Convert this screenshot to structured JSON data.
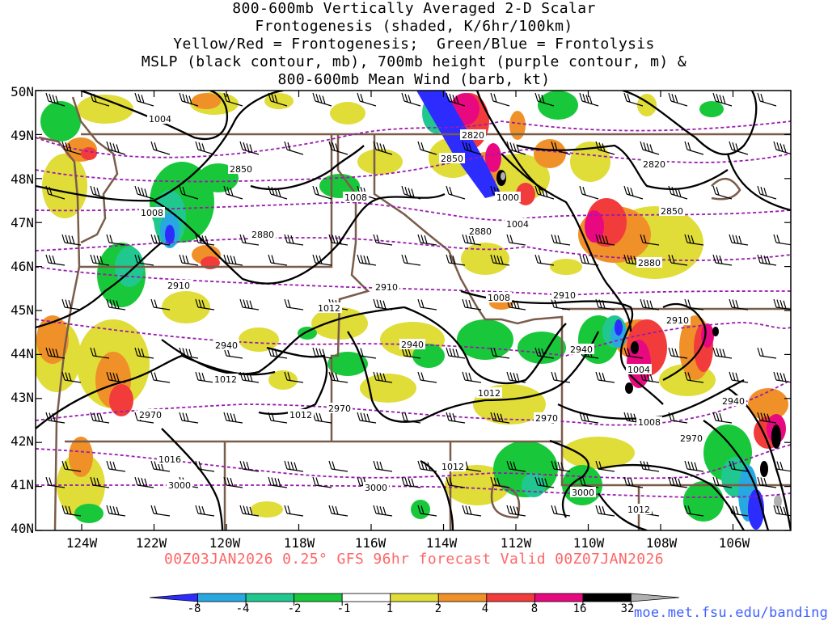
{
  "title": {
    "line1": "800-600mb Vertically Averaged 2-D Scalar",
    "line2": "Frontogenesis (shaded, K/6hr/100km)",
    "line3": "Yellow/Red = Frontogenesis;  Green/Blue = Frontolysis",
    "line4": "MSLP (black contour, mb), 700mb height (purple contour, m) &",
    "line5": "800-600mb Mean Wind (barb, kt)"
  },
  "axes": {
    "lat_labels": [
      "50N",
      "49N",
      "48N",
      "47N",
      "46N",
      "45N",
      "44N",
      "43N",
      "42N",
      "41N",
      "40N"
    ],
    "lon_labels": [
      "124W",
      "122W",
      "120W",
      "118W",
      "116W",
      "114W",
      "112W",
      "110W",
      "108W",
      "106W"
    ]
  },
  "footer": "00Z03JAN2026 0.25° GFS 96hr forecast Valid 00Z07JAN2026",
  "colorbar": {
    "labels": [
      "-8",
      "-4",
      "-2",
      "-1",
      "1",
      "2",
      "4",
      "8",
      "16",
      "32"
    ],
    "colors": [
      "#2c2cff",
      "#27a8e0",
      "#20c890",
      "#18c83a",
      "#ffffff",
      "#e0dc38",
      "#f09028",
      "#f23c3c",
      "#e80880",
      "#000000",
      "#b0b0b0"
    ]
  },
  "mslp_labels": [
    "1004",
    "1008",
    "1000",
    "1004",
    "1008",
    "1012",
    "1012",
    "1004",
    "1012",
    "1012",
    "1008",
    "1016",
    "1012",
    "1012",
    "1008"
  ],
  "height_labels": [
    "2820",
    "2850",
    "2850",
    "2880",
    "2820",
    "2850",
    "2880",
    "2880",
    "2910",
    "2910",
    "2910",
    "2910",
    "2940",
    "2940",
    "2940",
    "2940",
    "2970",
    "2970",
    "2970",
    "2970",
    "3000",
    "3000",
    "3000"
  ],
  "source_url": "moe.met.fsu.edu/banding"
}
